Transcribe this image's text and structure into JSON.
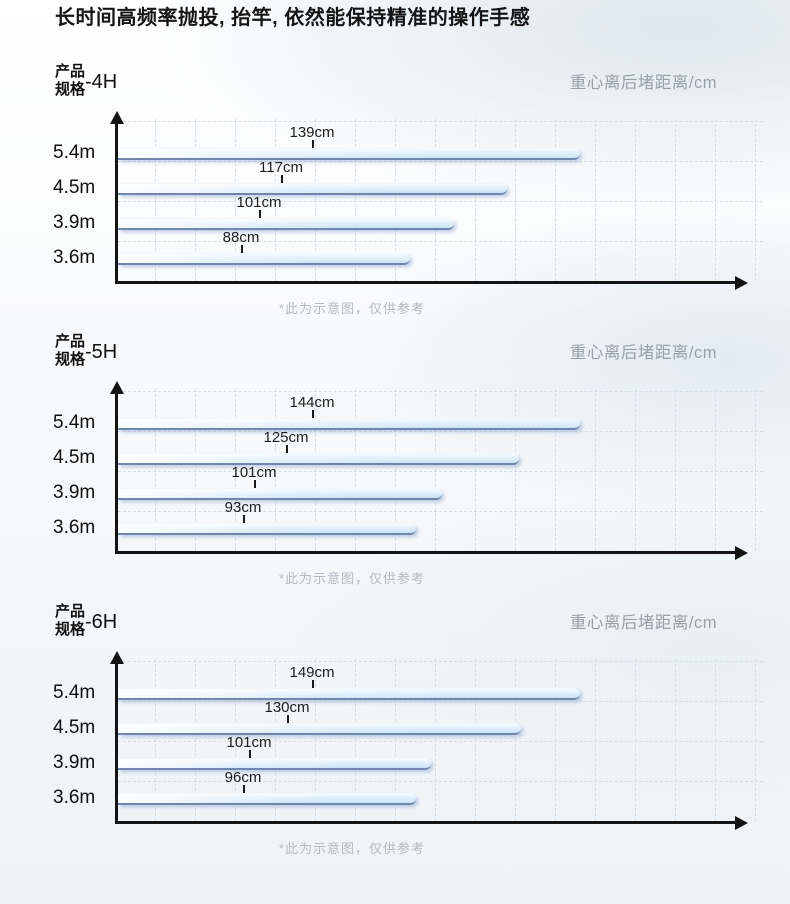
{
  "page": {
    "heading": "长时间高频率抛投, 抬竿, 依然能保持精准的操作手感",
    "colors": {
      "bar_fill": "#cbe3f7",
      "bar_edge": "#7186ad",
      "grid": "#d5dee5",
      "axis": "#141414",
      "axis_title_text": "#99a1a8",
      "note_text": "#b3bac0"
    }
  },
  "chart_data": [
    {
      "type": "bar",
      "orientation": "horizontal",
      "title_lines": [
        "产品",
        "规格"
      ],
      "model": "-4H",
      "axis_title": "重心离后堵距离/cm",
      "categories": [
        "5.4m",
        "4.5m",
        "3.9m",
        "3.6m"
      ],
      "values": [
        139,
        117,
        101,
        88
      ],
      "value_labels": [
        "139cm",
        "117cm",
        "101cm",
        "88cm"
      ],
      "unit": "cm",
      "grid": true,
      "legend": "none",
      "note": "*此为示意图，仅供参考"
    },
    {
      "type": "bar",
      "orientation": "horizontal",
      "title_lines": [
        "产品",
        "规格"
      ],
      "model": "-5H",
      "axis_title": "重心离后堵距离/cm",
      "categories": [
        "5.4m",
        "4.5m",
        "3.9m",
        "3.6m"
      ],
      "values": [
        144,
        125,
        101,
        93
      ],
      "value_labels": [
        "144cm",
        "125cm",
        "101cm",
        "93cm"
      ],
      "unit": "cm",
      "grid": true,
      "legend": "none",
      "note": "*此为示意图，仅供参考"
    },
    {
      "type": "bar",
      "orientation": "horizontal",
      "title_lines": [
        "产品",
        "规格"
      ],
      "model": "-6H",
      "axis_title": "重心离后堵距离/cm",
      "categories": [
        "5.4m",
        "4.5m",
        "3.9m",
        "3.6m"
      ],
      "values": [
        149,
        130,
        101,
        96
      ],
      "value_labels": [
        "149cm",
        "130cm",
        "101cm",
        "96cm"
      ],
      "unit": "cm",
      "grid": true,
      "legend": "none",
      "note": "*此为示意图，仅供参考"
    }
  ]
}
